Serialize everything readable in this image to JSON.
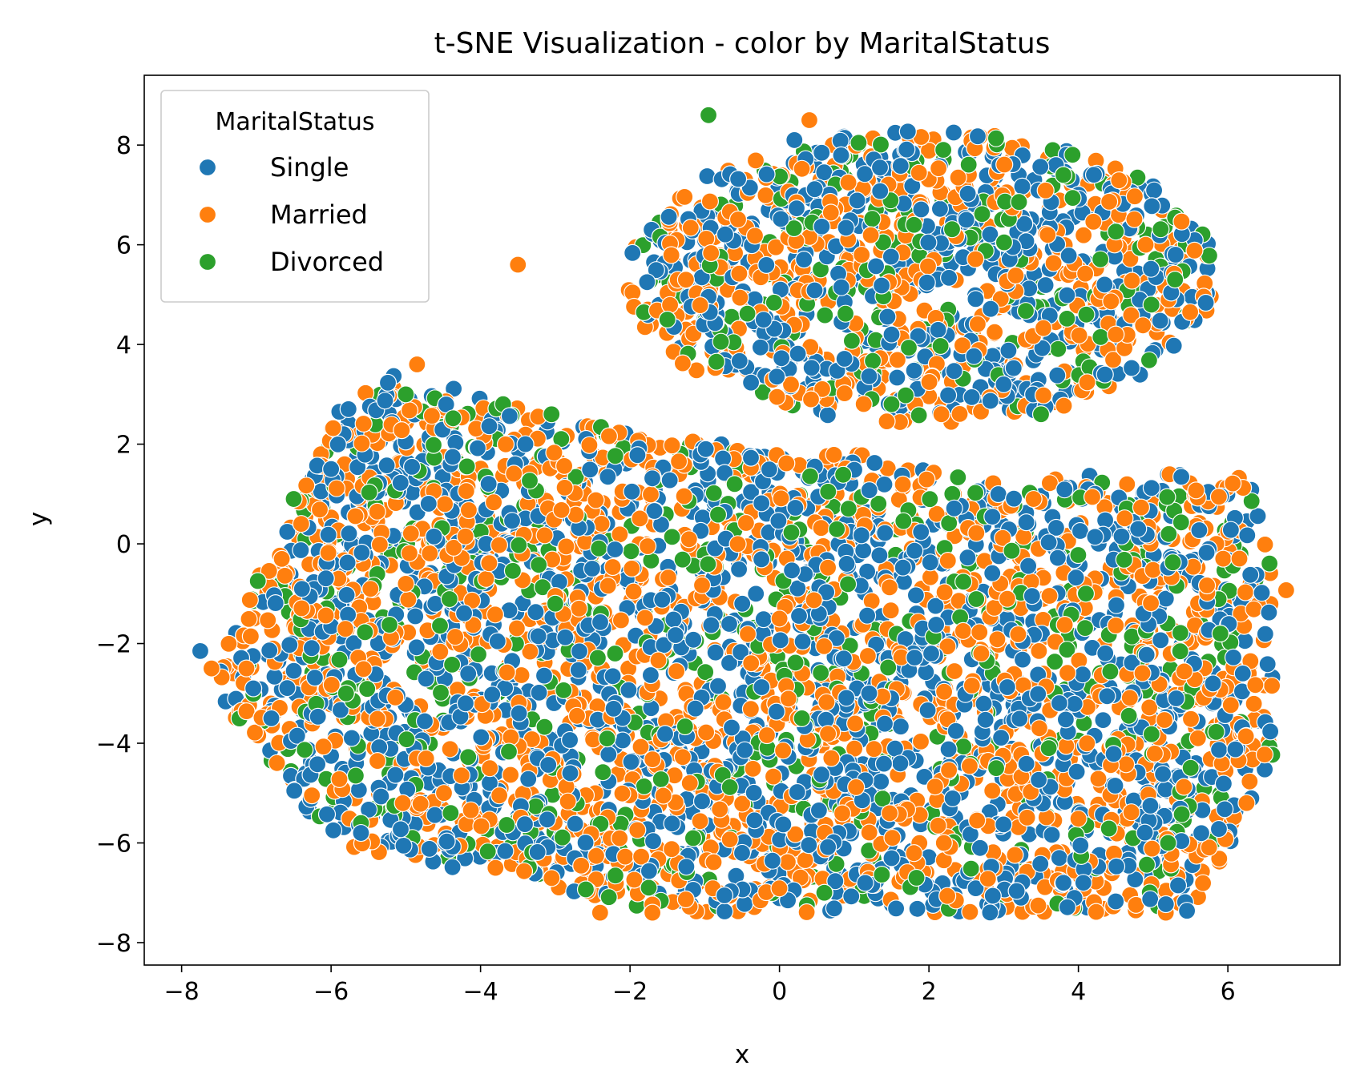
{
  "chart_data": {
    "type": "scatter",
    "title": "t-SNE Visualization - color by MaritalStatus",
    "xlabel": "x",
    "ylabel": "y",
    "xlim": [
      -8.5,
      7.5
    ],
    "ylim": [
      -8.45,
      9.4
    ],
    "xticks": [
      -8,
      -6,
      -4,
      -2,
      0,
      2,
      4,
      6
    ],
    "yticks": [
      -8,
      -6,
      -4,
      -2,
      0,
      2,
      4,
      6,
      8
    ],
    "grid": false,
    "legend": {
      "title": "MaritalStatus",
      "placement": "top-left"
    },
    "series": [
      {
        "name": "Single",
        "color": "#1f77b4",
        "points": [
          [
            -7.75,
            -2.15
          ],
          [
            5.88,
            -5.72
          ],
          [
            -1.9,
            1.78
          ],
          [
            0.2,
            8.1
          ],
          [
            -6.0,
            1.5
          ],
          [
            3.0,
            3.2
          ],
          [
            -4.2,
            -3.2
          ],
          [
            1.2,
            -3.0
          ],
          [
            4.8,
            0.3
          ],
          [
            -0.5,
            -6.2
          ],
          [
            -5.6,
            -5.8
          ],
          [
            2.5,
            6.5
          ],
          [
            6.2,
            -2.6
          ],
          [
            -3.4,
            2.0
          ],
          [
            0.9,
            -0.4
          ],
          [
            -2.8,
            -4.6
          ],
          [
            1.5,
            4.2
          ],
          [
            3.8,
            -6.8
          ],
          [
            -6.8,
            -3.5
          ],
          [
            5.3,
            5.8
          ]
        ]
      },
      {
        "name": "Married",
        "color": "#ff7f0e",
        "points": [
          [
            6.78,
            -0.93
          ],
          [
            6.25,
            -5.2
          ],
          [
            -4.85,
            3.6
          ],
          [
            -2.4,
            -7.4
          ],
          [
            -1.7,
            -7.4
          ],
          [
            -3.5,
            5.6
          ],
          [
            -7.6,
            -2.5
          ],
          [
            0.4,
            8.5
          ],
          [
            4.9,
            6.0
          ],
          [
            -1.2,
            -4.8
          ],
          [
            2.7,
            -2.2
          ],
          [
            -5.0,
            -0.8
          ],
          [
            1.1,
            5.8
          ],
          [
            3.4,
            0.9
          ],
          [
            -3.8,
            -6.5
          ],
          [
            0.0,
            -1.5
          ],
          [
            5.6,
            -3.9
          ],
          [
            -6.4,
            0.4
          ],
          [
            2.2,
            -6.0
          ],
          [
            4.5,
            4.2
          ]
        ]
      },
      {
        "name": "Divorced",
        "color": "#2ca02c",
        "points": [
          [
            -0.95,
            8.6
          ],
          [
            -5.0,
            3.0
          ],
          [
            -3.05,
            2.6
          ],
          [
            3.5,
            2.6
          ],
          [
            0.6,
            -7.0
          ],
          [
            -6.5,
            0.9
          ],
          [
            -2.2,
            -2.2
          ],
          [
            1.8,
            6.4
          ],
          [
            4.1,
            -1.0
          ],
          [
            -4.4,
            -5.4
          ],
          [
            5.2,
            -6.0
          ],
          [
            -0.6,
            1.2
          ],
          [
            2.9,
            -4.5
          ],
          [
            -1.5,
            4.5
          ],
          [
            0.3,
            -3.5
          ],
          [
            -5.8,
            -3.0
          ],
          [
            3.8,
            7.4
          ],
          [
            -3.0,
            -1.2
          ],
          [
            1.5,
            2.8
          ],
          [
            5.9,
            -1.8
          ]
        ]
      }
    ]
  }
}
